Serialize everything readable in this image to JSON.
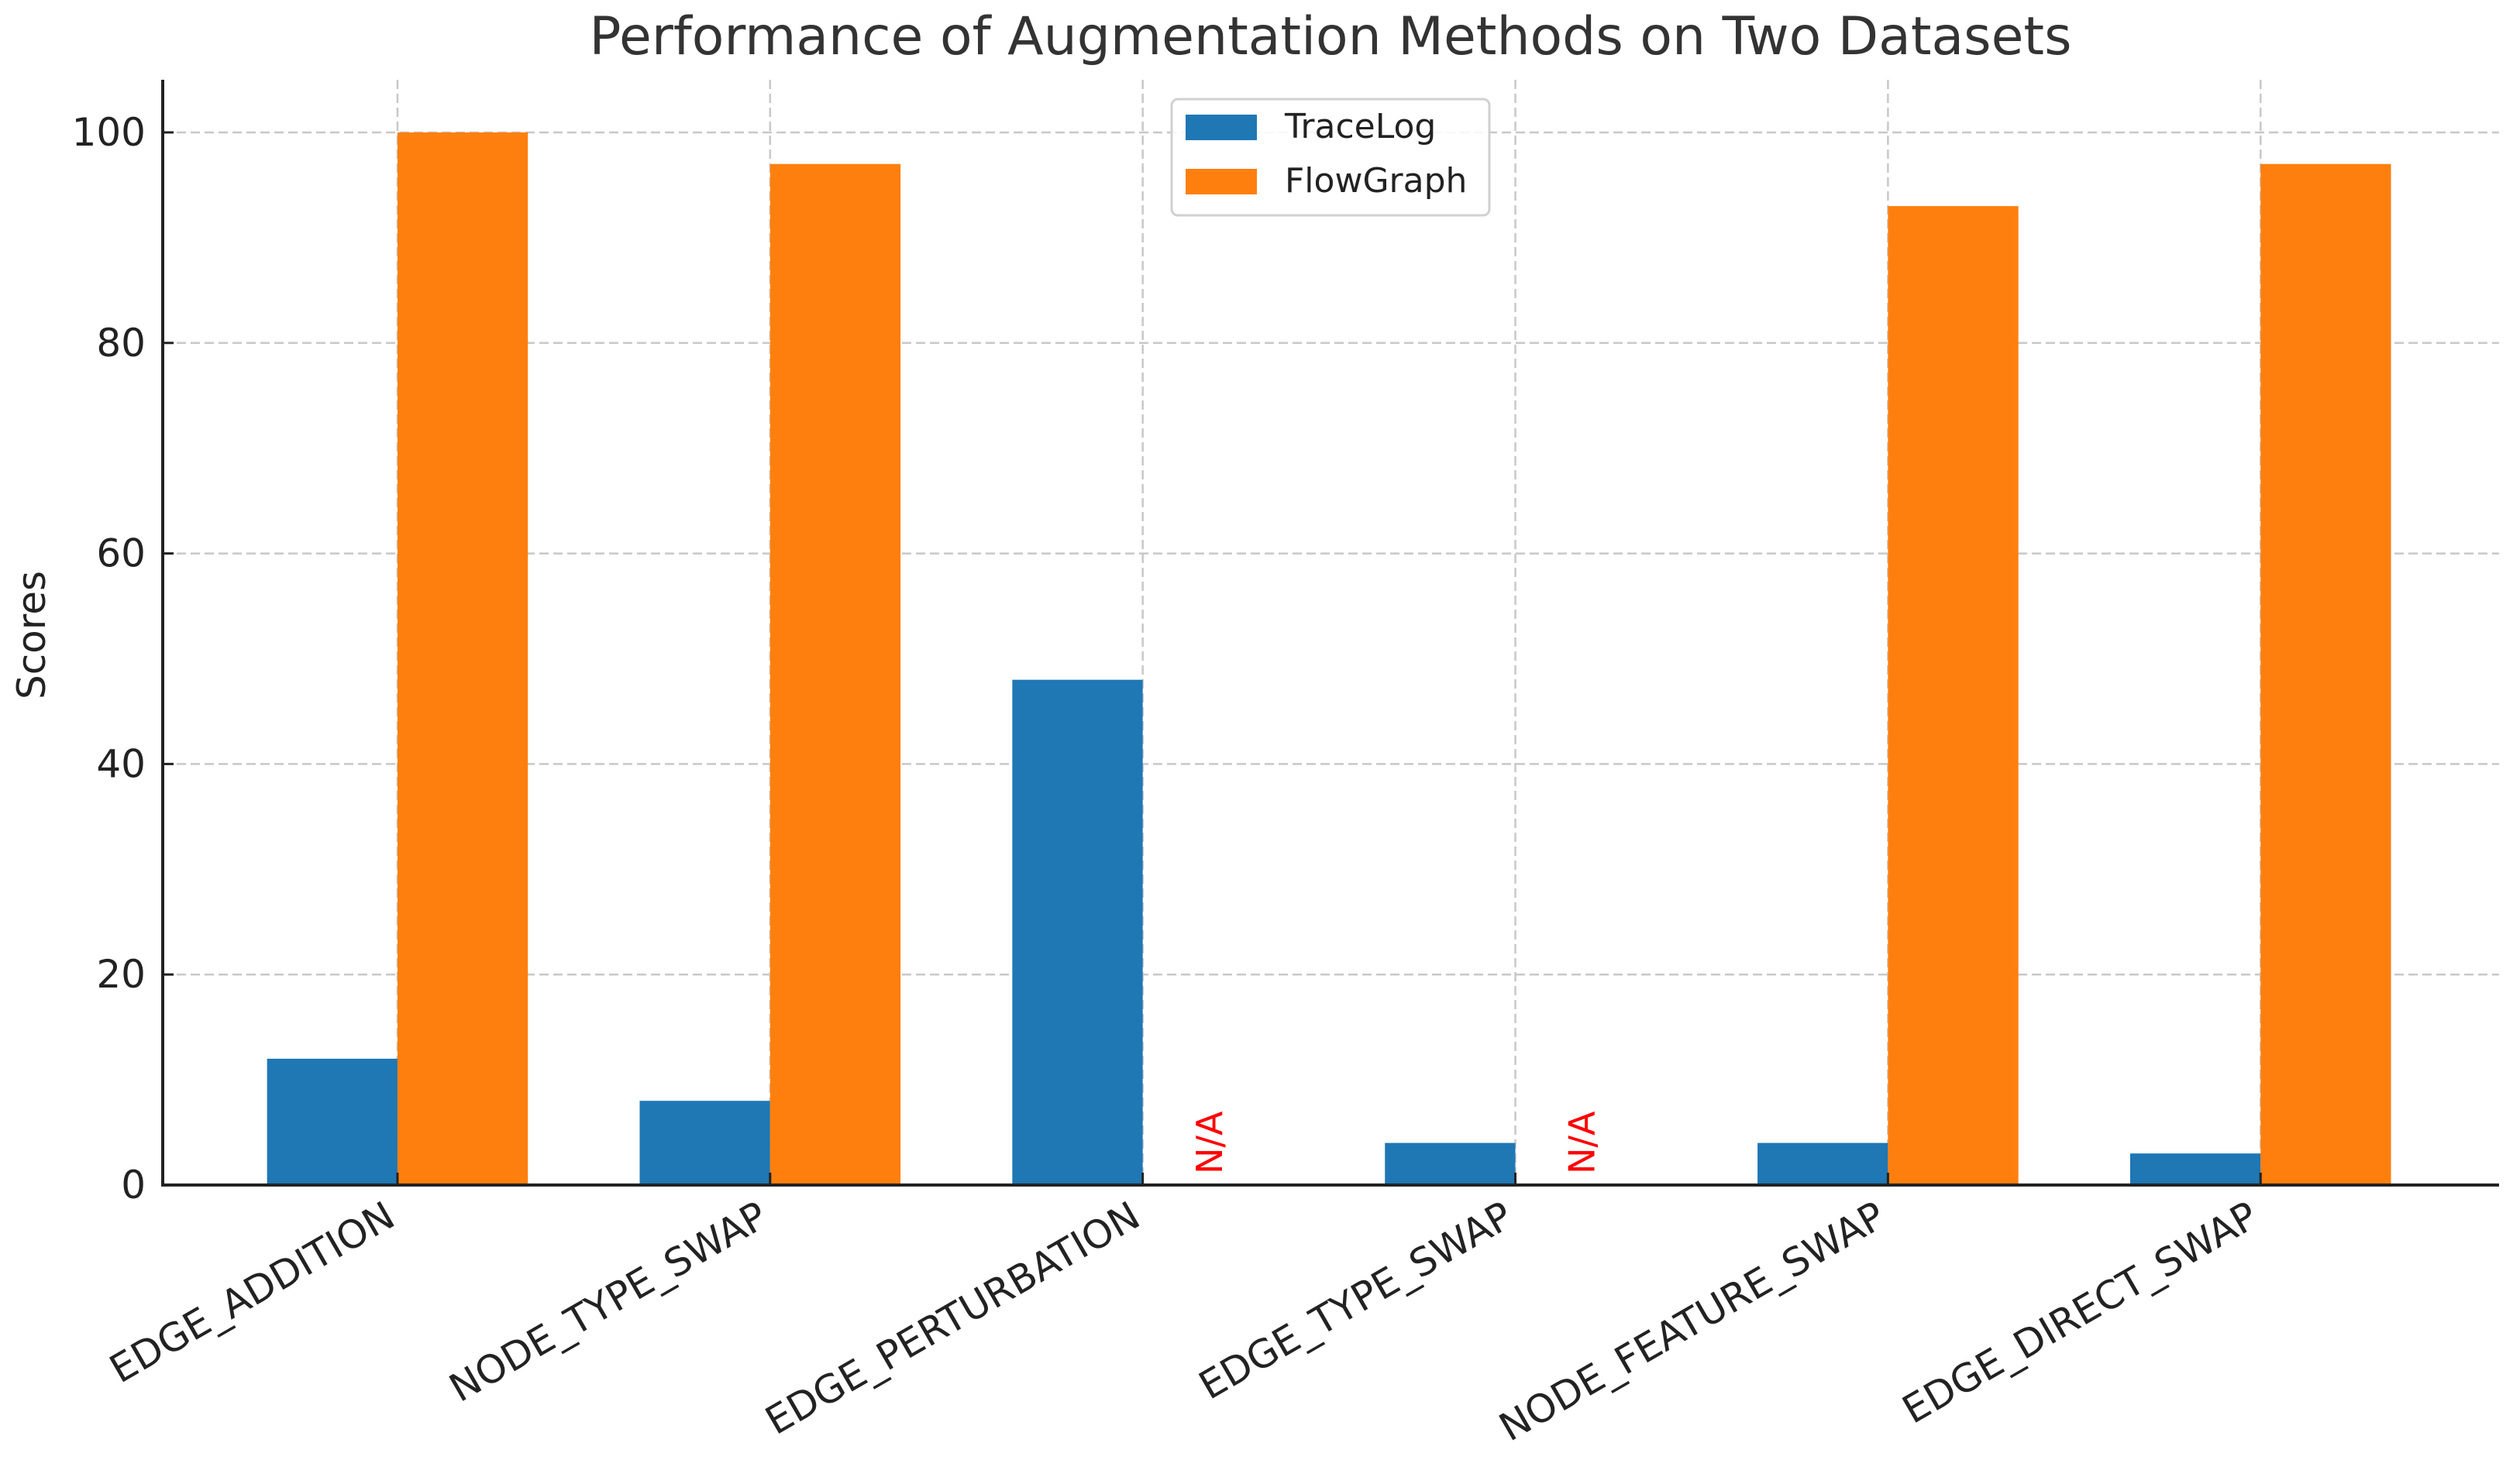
{
  "chart_data": {
    "type": "bar",
    "title": "Performance of Augmentation Methods on Two Datasets",
    "xlabel": "",
    "ylabel": "Scores",
    "ylim": [
      0,
      105
    ],
    "yticks": [
      0,
      20,
      40,
      60,
      80,
      100
    ],
    "grid": true,
    "legend_placement": "top-center",
    "categories": [
      "EDGE_ADDITION",
      "NODE_TYPE_SWAP",
      "EDGE_PERTURBATION",
      "EDGE_TYPE_SWAP",
      "NODE_FEATURE_SWAP",
      "EDGE_DIRECT_SWAP"
    ],
    "series": [
      {
        "name": "TraceLog",
        "color": "#1f77b4",
        "values": [
          12,
          8,
          48,
          4,
          4,
          3
        ]
      },
      {
        "name": "FlowGraph",
        "color": "#ff7f0e",
        "values": [
          100,
          97,
          null,
          null,
          93,
          97
        ]
      }
    ],
    "annotations": [
      {
        "category": "EDGE_PERTURBATION",
        "series": "FlowGraph",
        "text": "N/A",
        "color": "#ff0000"
      },
      {
        "category": "EDGE_TYPE_SWAP",
        "series": "FlowGraph",
        "text": "N/A",
        "color": "#ff0000"
      }
    ]
  }
}
